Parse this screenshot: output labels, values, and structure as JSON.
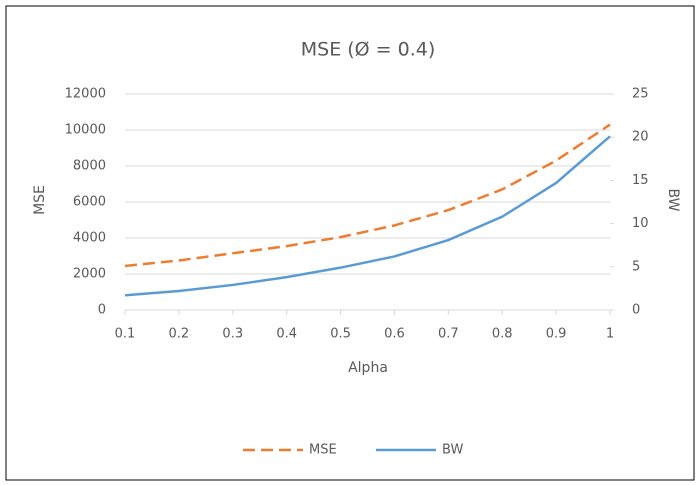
{
  "chart_data": {
    "type": "line",
    "title": "MSE (Ø = 0.4)",
    "x_label": "Alpha",
    "y_label": "MSE",
    "y2_label": "BW",
    "x": [
      0.1,
      0.2,
      0.3,
      0.4,
      0.5,
      0.6,
      0.7,
      0.8,
      0.9,
      1
    ],
    "series": [
      {
        "name": "MSE",
        "color": "#ed7d31",
        "dashed": true,
        "values": [
          2450,
          2750,
          3150,
          3550,
          4050,
          4700,
          5550,
          6700,
          8300,
          10300
        ]
      },
      {
        "name": "BW",
        "color": "#5b9bd5",
        "axis": "y2",
        "values": [
          1.7,
          2.2,
          2.9,
          3.8,
          4.9,
          6.2,
          8.1,
          10.8,
          14.7,
          20.1
        ]
      }
    ],
    "xlim": [
      0.1,
      1
    ],
    "xticks": [
      0.1,
      0.2,
      0.3,
      0.4,
      0.5,
      0.6,
      0.7,
      0.8,
      0.9,
      1
    ],
    "ylim": [
      0,
      12000
    ],
    "yticks": [
      0,
      2000,
      4000,
      6000,
      8000,
      10000,
      12000
    ],
    "y2lim": [
      0,
      25
    ],
    "y2ticks": [
      0,
      5,
      10,
      15,
      20,
      25
    ],
    "grid": true,
    "legend": "bottom"
  }
}
